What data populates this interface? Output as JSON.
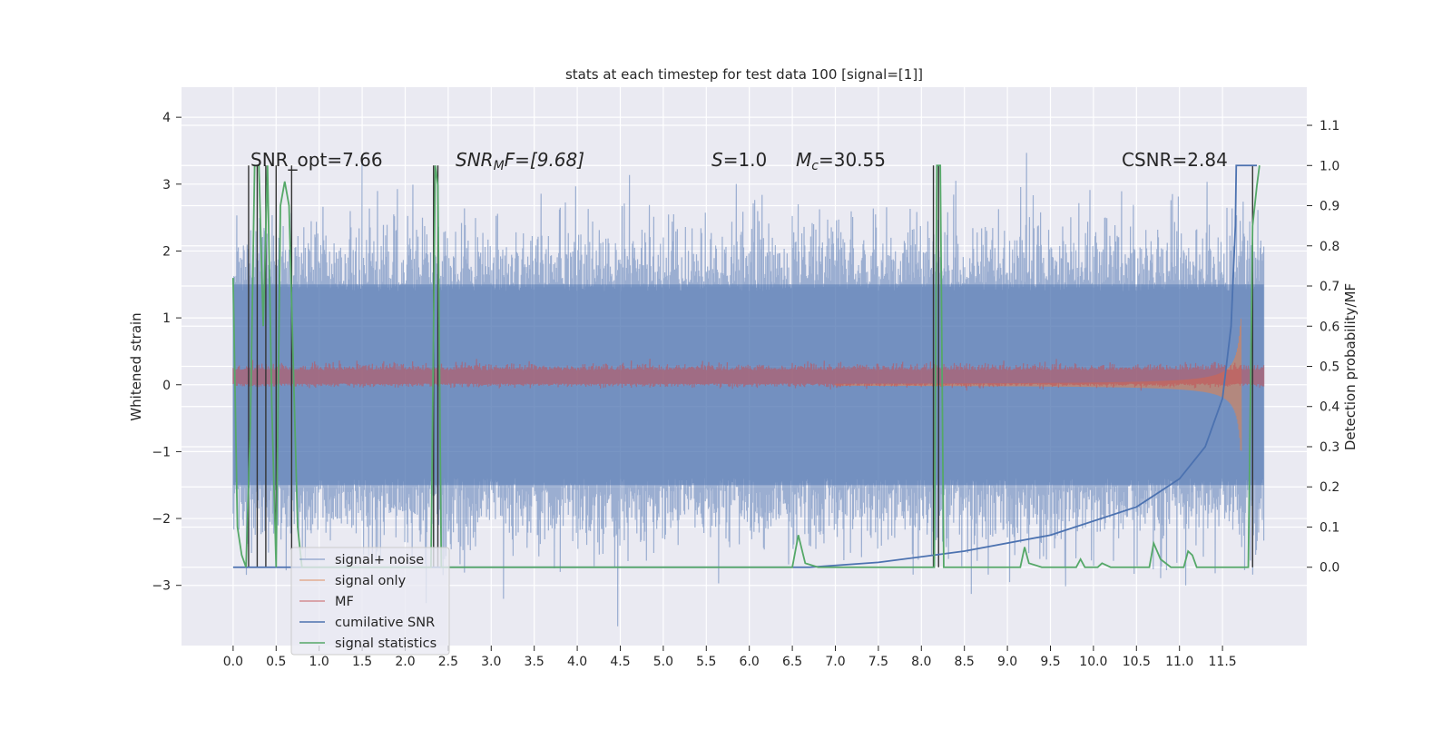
{
  "chart_data": {
    "type": "line",
    "title": "stats at each timestep for test data 100 [signal=[1]]",
    "xlabel": "",
    "ylabel_left": "Whitened strain",
    "ylabel_right": "Detection probability/MF",
    "xlim": [
      -0.6,
      12.48
    ],
    "ylim_left": [
      -3.9,
      4.45
    ],
    "ylim_right": [
      -0.195,
      1.195
    ],
    "x_ticks": [
      "0.0",
      "0.5",
      "1.0",
      "1.5",
      "2.0",
      "2.5",
      "3.0",
      "3.5",
      "4.0",
      "4.5",
      "5.0",
      "5.5",
      "6.0",
      "6.5",
      "7.0",
      "7.5",
      "8.0",
      "8.5",
      "9.0",
      "9.5",
      "10.0",
      "10.5",
      "11.0",
      "11.5"
    ],
    "y_left_ticks": [
      "4",
      "3",
      "2",
      "1",
      "0",
      "−1",
      "−2",
      "−3"
    ],
    "y_right_ticks": [
      "1.1",
      "1.0",
      "0.9",
      "0.8",
      "0.7",
      "0.6",
      "0.5",
      "0.4",
      "0.3",
      "0.2",
      "0.1",
      "0.0"
    ],
    "grid": true,
    "legend_position": "lower-left",
    "annotations": {
      "snr_opt": "SNR_opt=7.66",
      "snr_mf_base": "SNR",
      "snr_mf_sub": "M",
      "snr_mf_rest": "F=[9.68]",
      "s_base": "S",
      "s_rest": "=1.0",
      "mc_base": "M",
      "mc_sub": "c",
      "mc_rest": "=30.55",
      "csnr": "CSNR=2.84"
    },
    "series": [
      {
        "name": "signal+ noise",
        "axis": "left",
        "color": "#4c72b0",
        "description_range": [
          -2.7,
          2.7
        ]
      },
      {
        "name": "signal only",
        "axis": "left",
        "color": "#dd8452"
      },
      {
        "name": "MF",
        "axis": "left",
        "color": "#c44e52"
      },
      {
        "name": "cumilative SNR",
        "axis": "right",
        "color": "#4c72b0",
        "x": [
          0.0,
          6.7,
          7.5,
          8.5,
          9.5,
          10.5,
          11.0,
          11.3,
          11.5,
          11.6,
          11.65,
          11.66,
          11.9
        ],
        "y": [
          0.0,
          0.0,
          0.012,
          0.04,
          0.08,
          0.15,
          0.22,
          0.3,
          0.42,
          0.6,
          0.85,
          1.0,
          1.0
        ]
      },
      {
        "name": "signal statistics",
        "axis": "right",
        "color": "#55a868",
        "x": [
          0.0,
          0.05,
          0.1,
          0.15,
          0.2,
          0.25,
          0.3,
          0.35,
          0.4,
          0.45,
          0.5,
          0.55,
          0.6,
          0.65,
          0.7,
          0.75,
          0.8,
          0.9,
          2.3,
          2.35,
          2.38,
          2.42,
          2.5,
          6.5,
          6.57,
          6.65,
          6.8,
          8.15,
          8.18,
          8.22,
          8.26,
          9.15,
          9.2,
          9.25,
          9.4,
          9.8,
          9.85,
          9.9,
          10.05,
          10.1,
          10.2,
          10.65,
          10.7,
          10.78,
          10.9,
          11.05,
          11.1,
          11.15,
          11.2,
          11.3,
          11.8,
          11.85,
          11.9,
          11.93
        ],
        "y": [
          0.72,
          0.1,
          0.03,
          0.0,
          0.35,
          1.0,
          1.0,
          0.6,
          1.0,
          0.4,
          0.0,
          0.9,
          0.96,
          0.9,
          0.5,
          0.1,
          0.0,
          0.0,
          0.0,
          1.0,
          0.95,
          0.0,
          0.0,
          0.0,
          0.08,
          0.01,
          0.0,
          0.0,
          1.0,
          1.0,
          0.0,
          0.0,
          0.05,
          0.01,
          0.0,
          0.0,
          0.02,
          0.0,
          0.0,
          0.01,
          0.0,
          0.0,
          0.06,
          0.02,
          0.0,
          0.0,
          0.04,
          0.03,
          0.0,
          0.0,
          0.0,
          0.85,
          0.95,
          1.0
        ]
      }
    ],
    "detection_markers_x": [
      0.18,
      0.28,
      0.38,
      0.5,
      0.68,
      2.33,
      2.38,
      8.14,
      8.2,
      11.85
    ]
  }
}
